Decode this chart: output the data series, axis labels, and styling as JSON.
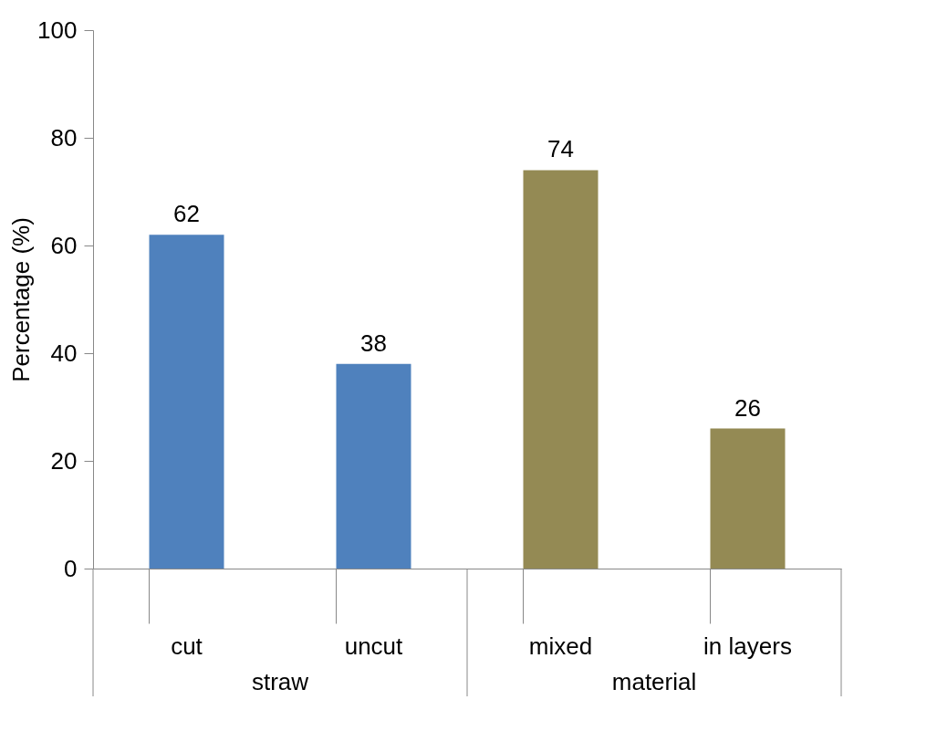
{
  "chart_data": {
    "type": "bar",
    "ylabel": "Percentage (%)",
    "categories": [
      "cut",
      "uncut",
      "mixed",
      "in layers"
    ],
    "values": [
      62,
      38,
      74,
      26
    ],
    "colors": [
      "#4f81bd",
      "#4f81bd",
      "#948a54",
      "#948a54"
    ],
    "ylim": [
      0,
      100
    ],
    "yticks": [
      0,
      20,
      40,
      60,
      80,
      100
    ],
    "data_labels": true,
    "annotations": [
      "straw",
      "material"
    ]
  }
}
